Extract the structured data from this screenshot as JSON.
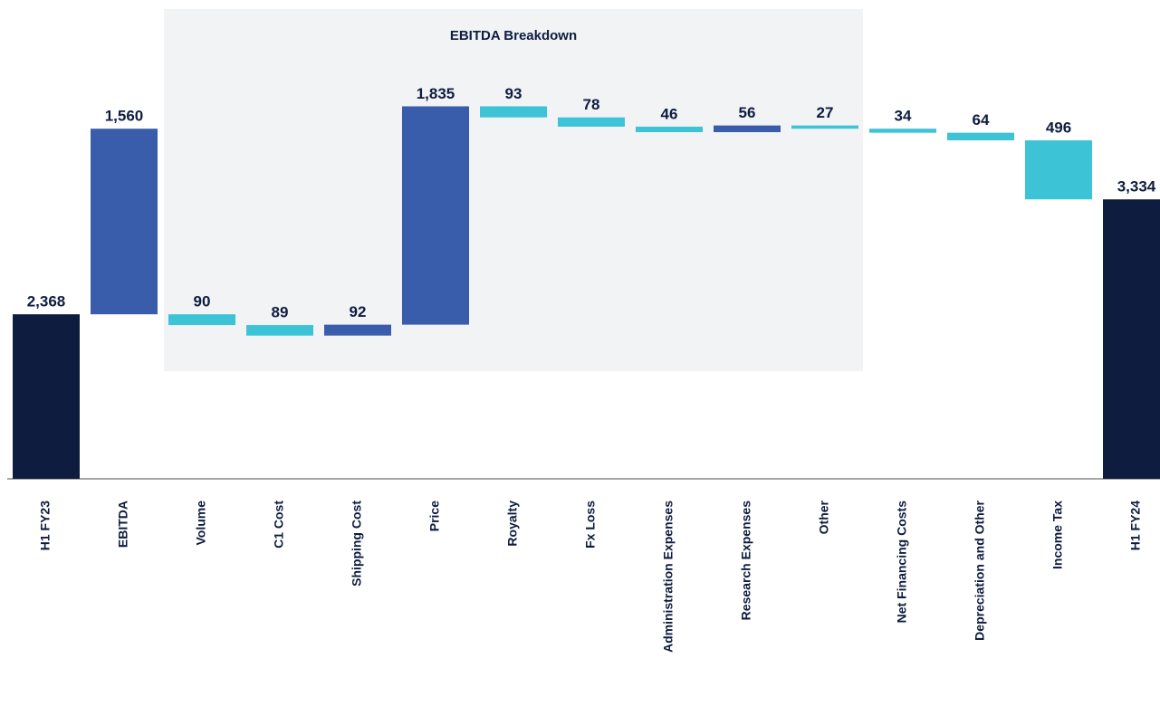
{
  "chart_data": {
    "type": "waterfall",
    "breakdown_title": "EBITDA Breakdown",
    "categories": [
      "H1 FY23",
      "EBITDA",
      "Volume",
      "C1 Cost",
      "Shipping Cost",
      "Price",
      "Royalty",
      "Fx Loss",
      "Administration Expenses",
      "Research Expenses",
      "Other",
      "Net Financing Costs",
      "Depreciation and Other",
      "Income Tax",
      "H1 FY24"
    ],
    "measures": [
      "total",
      "relative",
      "breakdown",
      "breakdown",
      "breakdown",
      "breakdown",
      "breakdown",
      "breakdown",
      "breakdown",
      "breakdown",
      "breakdown",
      "relative",
      "relative",
      "relative",
      "total"
    ],
    "values": [
      2368,
      1560,
      -90,
      -89,
      92,
      1835,
      -93,
      -78,
      -46,
      56,
      -27,
      -34,
      -64,
      -496,
      3334
    ],
    "value_labels": [
      "2,368",
      "1,560",
      "90",
      "89",
      "92",
      "1,835",
      "93",
      "78",
      "46",
      "56",
      "27",
      "34",
      "64",
      "496",
      "3,334"
    ],
    "colors": {
      "total": "#0e1c3f",
      "increase": "#3a5dab",
      "decrease": "#3cc3d6"
    },
    "ylim": [
      985,
      4500
    ]
  }
}
